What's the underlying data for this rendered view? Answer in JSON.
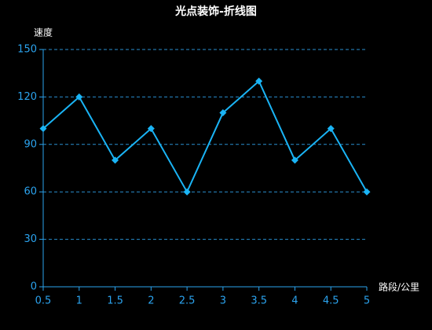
{
  "chart_data": {
    "type": "line",
    "title": "光点装饰-折线图",
    "y_label": "速度",
    "x_label": "路段/公里",
    "x": [
      0.5,
      1,
      1.5,
      2,
      2.5,
      3,
      3.5,
      4,
      4.5,
      5
    ],
    "values": [
      100,
      120,
      80,
      100,
      60,
      110,
      130,
      80,
      100,
      60
    ],
    "color": "#1ab4f5",
    "xlim": [
      0.5,
      5
    ],
    "xticks": [
      0.5,
      1,
      1.5,
      2,
      2.5,
      3,
      3.5,
      4,
      4.5,
      5
    ],
    "ylim": [
      0,
      150
    ],
    "yticks": [
      0,
      30,
      60,
      90,
      120,
      150
    ],
    "grid": true
  }
}
